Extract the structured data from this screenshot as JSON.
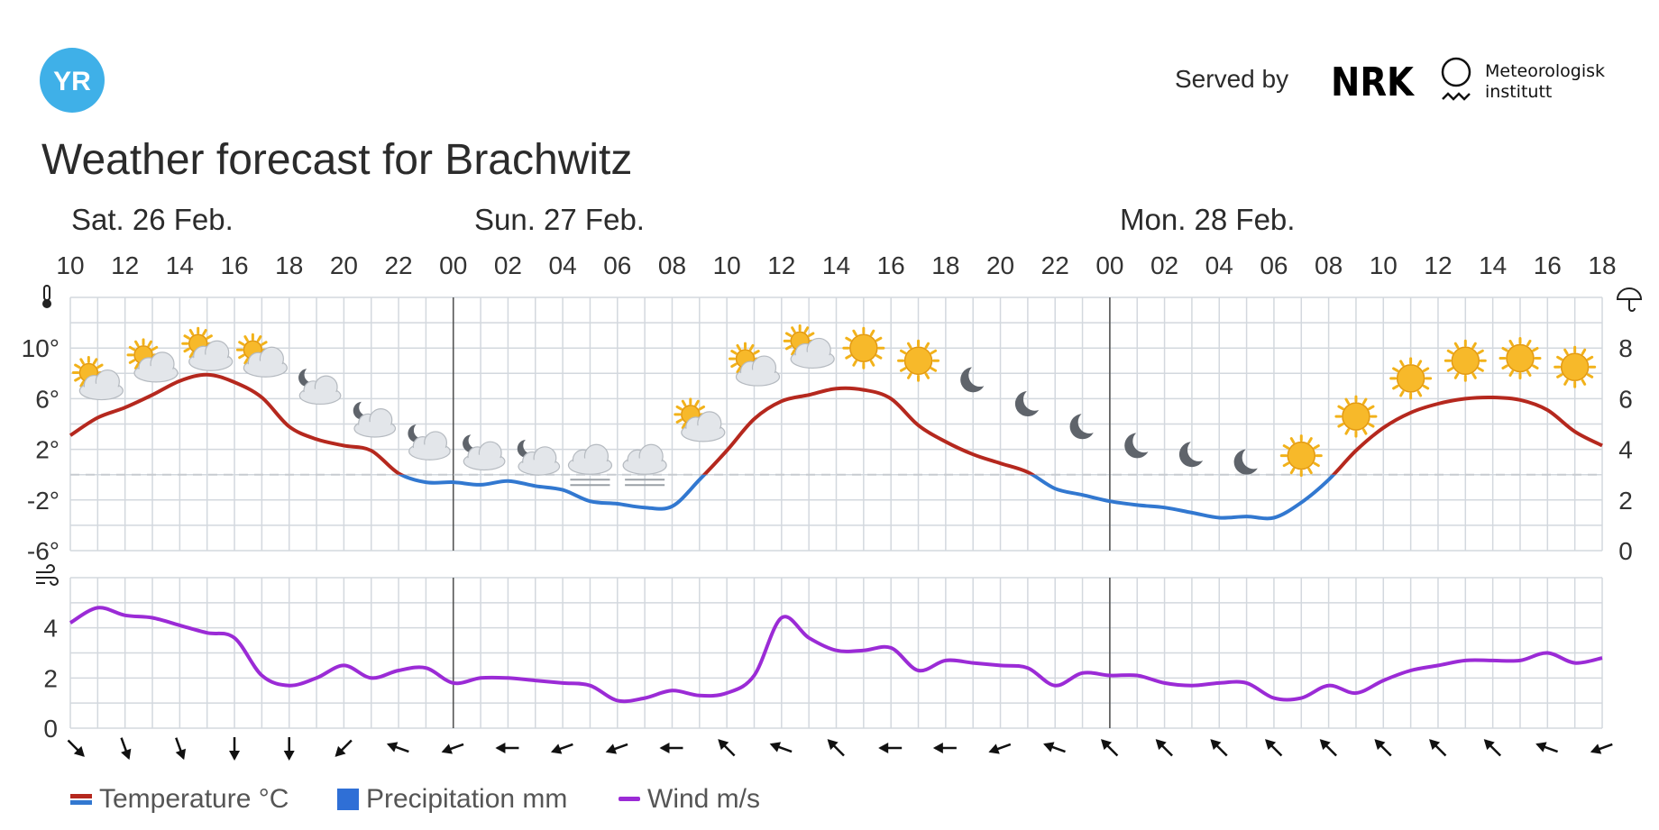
{
  "header": {
    "logo_text": "YR",
    "served_by": "Served by",
    "nrk_logo": "NRK",
    "met_name_line1": "Meteorologisk",
    "met_name_line2": "institutt"
  },
  "title": "Weather forecast for Brachwitz",
  "days": [
    "Sat. 26 Feb.",
    "Sun. 27 Feb.",
    "Mon. 28 Feb."
  ],
  "legend": {
    "temperature": "Temperature °C",
    "precipitation": "Precipitation mm",
    "wind": "Wind m/s"
  },
  "colors": {
    "temp_warm": "#b5281e",
    "temp_cold": "#3278d0",
    "precipitation": "#2f6fd6",
    "wind": "#9b2bd6",
    "grid": "#d3d8de",
    "day_divider": "#555555",
    "zero_line": "#c7cbd0"
  },
  "chart_data": [
    {
      "type": "line",
      "name": "temperature",
      "x_tick_labels": [
        "10",
        "12",
        "14",
        "16",
        "18",
        "20",
        "22",
        "00",
        "02",
        "04",
        "06",
        "08",
        "10",
        "12",
        "14",
        "16",
        "18",
        "20",
        "22",
        "00",
        "02",
        "04",
        "06",
        "08",
        "10",
        "12",
        "14",
        "16",
        "18"
      ],
      "x_hours": [
        10,
        11,
        12,
        13,
        14,
        15,
        16,
        17,
        18,
        19,
        20,
        21,
        22,
        23,
        24,
        25,
        26,
        27,
        28,
        29,
        30,
        31,
        32,
        33,
        34,
        35,
        36,
        37,
        38,
        39,
        40,
        41,
        42,
        43,
        44,
        45,
        46,
        47,
        48,
        49,
        50,
        51,
        52,
        53,
        54,
        55,
        56,
        57,
        58,
        59,
        60,
        61,
        62,
        63,
        64,
        65,
        66
      ],
      "temperature": [
        3.1,
        4.5,
        5.3,
        6.3,
        7.4,
        7.9,
        7.3,
        6.1,
        3.8,
        2.8,
        2.3,
        1.9,
        0.1,
        -0.6,
        -0.6,
        -0.8,
        -0.5,
        -0.9,
        -1.2,
        -2.1,
        -2.3,
        -2.6,
        -2.5,
        -0.4,
        1.9,
        4.4,
        5.8,
        6.3,
        6.8,
        6.7,
        6.0,
        3.9,
        2.6,
        1.6,
        0.9,
        0.2,
        -1.1,
        -1.6,
        -2.1,
        -2.4,
        -2.6,
        -3.0,
        -3.4,
        -3.3,
        -3.4,
        -2.2,
        -0.4,
        1.9,
        3.7,
        4.9,
        5.6,
        6.0,
        6.1,
        5.9,
        5.1,
        3.4,
        2.3
      ],
      "left_axis_ticks": [
        "10°",
        "6°",
        "2°",
        "-2°",
        "-6°"
      ],
      "right_axis_ticks": [
        "8",
        "6",
        "4",
        "2",
        "0"
      ],
      "ylim": [
        -6,
        14
      ],
      "zero_line": true,
      "precipitation": []
    },
    {
      "type": "line",
      "name": "wind",
      "x_hours": [
        10,
        11,
        12,
        13,
        14,
        15,
        16,
        17,
        18,
        19,
        20,
        21,
        22,
        23,
        24,
        25,
        26,
        27,
        28,
        29,
        30,
        31,
        32,
        33,
        34,
        35,
        36,
        37,
        38,
        39,
        40,
        41,
        42,
        43,
        44,
        45,
        46,
        47,
        48,
        49,
        50,
        51,
        52,
        53,
        54,
        55,
        56,
        57,
        58,
        59,
        60,
        61,
        62,
        63,
        64,
        65,
        66
      ],
      "values": [
        4.2,
        4.8,
        4.5,
        4.4,
        4.1,
        3.8,
        3.6,
        2.1,
        1.7,
        2.0,
        2.5,
        2.0,
        2.3,
        2.4,
        1.8,
        2.0,
        2.0,
        1.9,
        1.8,
        1.7,
        1.1,
        1.2,
        1.5,
        1.3,
        1.4,
        2.1,
        4.4,
        3.6,
        3.1,
        3.1,
        3.2,
        2.3,
        2.7,
        2.6,
        2.5,
        2.4,
        1.7,
        2.2,
        2.1,
        2.1,
        1.8,
        1.7,
        1.8,
        1.8,
        1.2,
        1.2,
        1.7,
        1.4,
        1.9,
        2.3,
        2.5,
        2.7,
        2.7,
        2.7,
        3.0,
        2.6,
        2.8
      ],
      "y_ticks": [
        "4",
        "2",
        "0"
      ],
      "ylim": [
        0,
        6
      ]
    }
  ],
  "weather_symbols": [
    {
      "hour": 11,
      "icon": "partly-cloudy-day",
      "temp": 7.2
    },
    {
      "hour": 13,
      "icon": "partly-cloudy-day",
      "temp": 8.6
    },
    {
      "hour": 15,
      "icon": "partly-cloudy-day",
      "temp": 9.5
    },
    {
      "hour": 17,
      "icon": "partly-cloudy-day",
      "temp": 9.0
    },
    {
      "hour": 19,
      "icon": "partly-cloudy-night",
      "temp": 6.8
    },
    {
      "hour": 21,
      "icon": "partly-cloudy-night",
      "temp": 4.2
    },
    {
      "hour": 23,
      "icon": "partly-cloudy-night",
      "temp": 2.4
    },
    {
      "hour": 25,
      "icon": "partly-cloudy-night",
      "temp": 1.6
    },
    {
      "hour": 27,
      "icon": "partly-cloudy-night",
      "temp": 1.2
    },
    {
      "hour": 29,
      "icon": "fog",
      "temp": 0.6
    },
    {
      "hour": 31,
      "icon": "fog",
      "temp": 0.6
    },
    {
      "hour": 33,
      "icon": "partly-cloudy-day",
      "temp": 3.9
    },
    {
      "hour": 35,
      "icon": "partly-cloudy-day",
      "temp": 8.3
    },
    {
      "hour": 37,
      "icon": "partly-cloudy-day",
      "temp": 9.7
    },
    {
      "hour": 39,
      "icon": "clear-day",
      "temp": 10.0
    },
    {
      "hour": 41,
      "icon": "clear-day",
      "temp": 9.0
    },
    {
      "hour": 43,
      "icon": "clear-night",
      "temp": 7.5
    },
    {
      "hour": 45,
      "icon": "clear-night",
      "temp": 5.6
    },
    {
      "hour": 47,
      "icon": "clear-night",
      "temp": 3.8
    },
    {
      "hour": 49,
      "icon": "clear-night",
      "temp": 2.3
    },
    {
      "hour": 51,
      "icon": "clear-night",
      "temp": 1.6
    },
    {
      "hour": 53,
      "icon": "clear-night",
      "temp": 1.0
    },
    {
      "hour": 55,
      "icon": "clear-day",
      "temp": 1.5
    },
    {
      "hour": 57,
      "icon": "clear-day",
      "temp": 4.6
    },
    {
      "hour": 59,
      "icon": "clear-day",
      "temp": 7.6
    },
    {
      "hour": 61,
      "icon": "clear-day",
      "temp": 9.0
    },
    {
      "hour": 63,
      "icon": "clear-day",
      "temp": 9.2
    },
    {
      "hour": 65,
      "icon": "clear-day",
      "temp": 8.5
    }
  ],
  "wind_directions": [
    {
      "hour": 10,
      "icon": "arrow-se"
    },
    {
      "hour": 12,
      "icon": "arrow-sse"
    },
    {
      "hour": 14,
      "icon": "arrow-sse"
    },
    {
      "hour": 16,
      "icon": "arrow-s"
    },
    {
      "hour": 18,
      "icon": "arrow-s"
    },
    {
      "hour": 20,
      "icon": "arrow-sw"
    },
    {
      "hour": 22,
      "icon": "arrow-wnw"
    },
    {
      "hour": 24,
      "icon": "arrow-wsw"
    },
    {
      "hour": 26,
      "icon": "arrow-w"
    },
    {
      "hour": 28,
      "icon": "arrow-wsw"
    },
    {
      "hour": 30,
      "icon": "arrow-wsw"
    },
    {
      "hour": 32,
      "icon": "arrow-w"
    },
    {
      "hour": 34,
      "icon": "arrow-nw"
    },
    {
      "hour": 36,
      "icon": "arrow-wnw"
    },
    {
      "hour": 38,
      "icon": "arrow-nw"
    },
    {
      "hour": 40,
      "icon": "arrow-w"
    },
    {
      "hour": 42,
      "icon": "arrow-w"
    },
    {
      "hour": 44,
      "icon": "arrow-wsw"
    },
    {
      "hour": 46,
      "icon": "arrow-wnw"
    },
    {
      "hour": 48,
      "icon": "arrow-nw"
    },
    {
      "hour": 50,
      "icon": "arrow-nw"
    },
    {
      "hour": 52,
      "icon": "arrow-nw"
    },
    {
      "hour": 54,
      "icon": "arrow-nw"
    },
    {
      "hour": 56,
      "icon": "arrow-nw"
    },
    {
      "hour": 58,
      "icon": "arrow-nw"
    },
    {
      "hour": 60,
      "icon": "arrow-nw"
    },
    {
      "hour": 62,
      "icon": "arrow-nw"
    },
    {
      "hour": 64,
      "icon": "arrow-wnw"
    },
    {
      "hour": 66,
      "icon": "arrow-wsw"
    }
  ],
  "icons": {
    "left_axis": "thermometer-icon",
    "right_axis": "umbrella-icon",
    "wind_axis": "wind-icon"
  }
}
